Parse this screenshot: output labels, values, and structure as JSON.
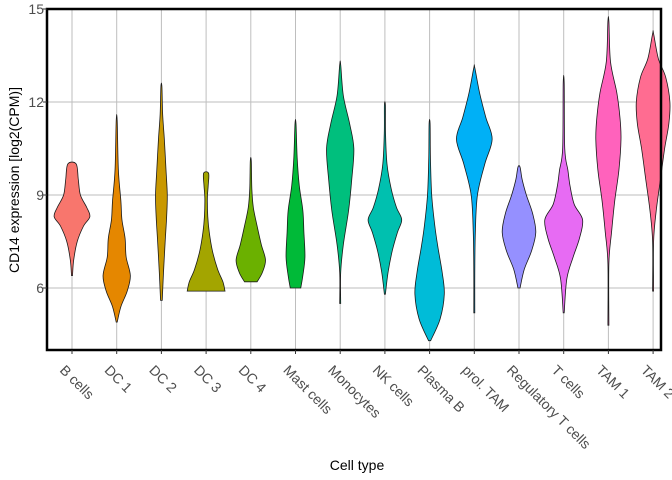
{
  "chart_data": {
    "type": "violin",
    "title": "",
    "xlabel": "Cell type",
    "ylabel": "CD14 expression [log2(CPM)]",
    "ylim": [
      4,
      15
    ],
    "yticks": [
      6,
      9,
      12,
      15
    ],
    "grid": true,
    "legend": "none",
    "categories": [
      "B cells",
      "DC 1",
      "DC 2",
      "DC 3",
      "DC 4",
      "Mast cells",
      "Monocytes",
      "NK cells",
      "Plasma B",
      "prol. TAM",
      "Regulatory T cells",
      "T cells",
      "TAM 1",
      "TAM 2"
    ],
    "colors": [
      "#F8766D",
      "#E58700",
      "#C99800",
      "#A3A500",
      "#6BB100",
      "#00BA38",
      "#00BF7D",
      "#00C0AF",
      "#00BCD8",
      "#00B0F6",
      "#9590FF",
      "#E76BF3",
      "#FF62BC",
      "#FF6C91"
    ],
    "violins": [
      {
        "min": 6.4,
        "max": 10.0,
        "profile": [
          [
            6.4,
            0.02
          ],
          [
            6.9,
            0.08
          ],
          [
            7.5,
            0.25
          ],
          [
            8.0,
            0.55
          ],
          [
            8.3,
            0.85
          ],
          [
            8.6,
            0.7
          ],
          [
            9.0,
            0.4
          ],
          [
            9.5,
            0.3
          ],
          [
            10.0,
            0.2
          ]
        ]
      },
      {
        "min": 4.9,
        "max": 11.4,
        "profile": [
          [
            4.9,
            0.02
          ],
          [
            5.4,
            0.2
          ],
          [
            5.9,
            0.5
          ],
          [
            6.4,
            0.65
          ],
          [
            7.0,
            0.45
          ],
          [
            7.6,
            0.4
          ],
          [
            8.2,
            0.25
          ],
          [
            8.8,
            0.2
          ],
          [
            9.8,
            0.08
          ],
          [
            11.4,
            0.02
          ]
        ]
      },
      {
        "min": 5.6,
        "max": 12.5,
        "profile": [
          [
            5.6,
            0.04
          ],
          [
            6.5,
            0.1
          ],
          [
            7.5,
            0.18
          ],
          [
            8.3,
            0.25
          ],
          [
            9.0,
            0.28
          ],
          [
            9.8,
            0.22
          ],
          [
            10.8,
            0.14
          ],
          [
            11.6,
            0.06
          ],
          [
            12.5,
            0.02
          ]
        ]
      },
      {
        "min": 5.9,
        "max": 9.7,
        "profile": [
          [
            5.9,
            0.9
          ],
          [
            6.2,
            0.8
          ],
          [
            6.6,
            0.55
          ],
          [
            7.2,
            0.3
          ],
          [
            7.8,
            0.15
          ],
          [
            8.3,
            0.08
          ],
          [
            8.9,
            0.06
          ],
          [
            9.3,
            0.1
          ],
          [
            9.7,
            0.12
          ]
        ]
      },
      {
        "min": 6.2,
        "max": 10.1,
        "profile": [
          [
            6.2,
            0.3
          ],
          [
            6.5,
            0.55
          ],
          [
            6.9,
            0.7
          ],
          [
            7.4,
            0.5
          ],
          [
            8.0,
            0.3
          ],
          [
            8.6,
            0.12
          ],
          [
            9.2,
            0.05
          ],
          [
            10.1,
            0.02
          ]
        ]
      },
      {
        "min": 6.0,
        "max": 11.3,
        "profile": [
          [
            6.0,
            0.25
          ],
          [
            6.4,
            0.35
          ],
          [
            7.0,
            0.45
          ],
          [
            7.8,
            0.4
          ],
          [
            8.5,
            0.35
          ],
          [
            9.3,
            0.18
          ],
          [
            10.2,
            0.08
          ],
          [
            11.3,
            0.02
          ]
        ]
      },
      {
        "min": 5.5,
        "max": 13.2,
        "profile": [
          [
            5.5,
            0.01
          ],
          [
            6.5,
            0.02
          ],
          [
            7.4,
            0.15
          ],
          [
            8.5,
            0.4
          ],
          [
            9.5,
            0.55
          ],
          [
            10.5,
            0.65
          ],
          [
            11.3,
            0.45
          ],
          [
            12.2,
            0.15
          ],
          [
            13.2,
            0.02
          ]
        ]
      },
      {
        "min": 5.8,
        "max": 11.9,
        "profile": [
          [
            5.8,
            0.02
          ],
          [
            6.5,
            0.15
          ],
          [
            7.2,
            0.35
          ],
          [
            7.8,
            0.6
          ],
          [
            8.2,
            0.8
          ],
          [
            8.6,
            0.55
          ],
          [
            9.2,
            0.3
          ],
          [
            10.0,
            0.1
          ],
          [
            11.0,
            0.03
          ],
          [
            11.9,
            0.01
          ]
        ]
      },
      {
        "min": 4.3,
        "max": 11.3,
        "profile": [
          [
            4.3,
            0.05
          ],
          [
            5.0,
            0.5
          ],
          [
            5.8,
            0.7
          ],
          [
            6.5,
            0.6
          ],
          [
            7.3,
            0.4
          ],
          [
            8.0,
            0.25
          ],
          [
            9.0,
            0.1
          ],
          [
            10.2,
            0.04
          ],
          [
            11.3,
            0.01
          ]
        ]
      },
      {
        "min": 5.2,
        "max": 13.1,
        "profile": [
          [
            5.2,
            0.01
          ],
          [
            6.5,
            0.02
          ],
          [
            7.8,
            0.05
          ],
          [
            9.0,
            0.15
          ],
          [
            10.0,
            0.5
          ],
          [
            10.8,
            0.85
          ],
          [
            11.5,
            0.55
          ],
          [
            12.3,
            0.25
          ],
          [
            13.1,
            0.02
          ]
        ]
      },
      {
        "min": 6.0,
        "max": 9.9,
        "profile": [
          [
            6.0,
            0.05
          ],
          [
            6.6,
            0.25
          ],
          [
            7.2,
            0.6
          ],
          [
            7.8,
            0.8
          ],
          [
            8.4,
            0.65
          ],
          [
            9.0,
            0.35
          ],
          [
            9.5,
            0.15
          ],
          [
            9.9,
            0.05
          ]
        ]
      },
      {
        "min": 5.2,
        "max": 12.6,
        "profile": [
          [
            5.2,
            0.02
          ],
          [
            6.3,
            0.15
          ],
          [
            7.0,
            0.45
          ],
          [
            7.6,
            0.75
          ],
          [
            8.2,
            0.9
          ],
          [
            8.7,
            0.5
          ],
          [
            9.3,
            0.3
          ],
          [
            9.8,
            0.2
          ],
          [
            10.5,
            0.05
          ],
          [
            12.6,
            0.01
          ]
        ]
      },
      {
        "min": 4.8,
        "max": 14.6,
        "profile": [
          [
            4.8,
            0.01
          ],
          [
            6.8,
            0.02
          ],
          [
            7.8,
            0.15
          ],
          [
            8.8,
            0.3
          ],
          [
            9.8,
            0.5
          ],
          [
            10.8,
            0.6
          ],
          [
            11.5,
            0.55
          ],
          [
            12.3,
            0.4
          ],
          [
            13.3,
            0.1
          ],
          [
            14.6,
            0.01
          ]
        ]
      },
      {
        "min": 5.9,
        "max": 14.2,
        "profile": [
          [
            5.9,
            0.01
          ],
          [
            7.5,
            0.02
          ],
          [
            8.5,
            0.15
          ],
          [
            9.5,
            0.35
          ],
          [
            10.5,
            0.55
          ],
          [
            11.3,
            0.75
          ],
          [
            12.0,
            0.8
          ],
          [
            12.8,
            0.6
          ],
          [
            13.4,
            0.25
          ],
          [
            14.2,
            0.02
          ]
        ]
      }
    ]
  }
}
